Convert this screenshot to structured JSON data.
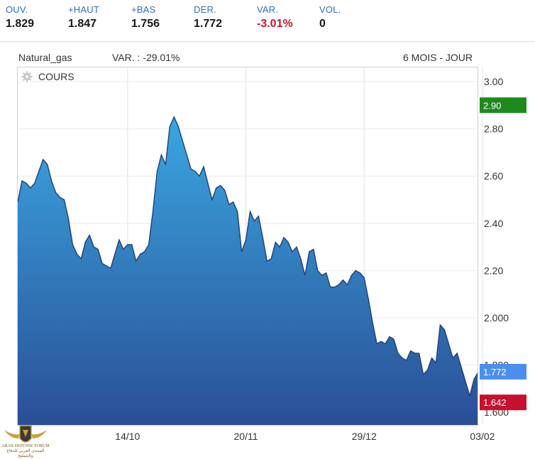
{
  "stats": [
    {
      "label": "OUV.",
      "value": "1.829",
      "neg": false
    },
    {
      "label": "+HAUT",
      "value": "1.847",
      "neg": false
    },
    {
      "label": "+BAS",
      "value": "1.756",
      "neg": false
    },
    {
      "label": "DER.",
      "value": "1.772",
      "neg": false
    },
    {
      "label": "VAR.",
      "value": "-3.01%",
      "neg": true
    },
    {
      "label": "VOL.",
      "value": "0",
      "neg": false
    }
  ],
  "header": {
    "symbol": "Natural_gas",
    "variation": "VAR. : -29.01%",
    "period": "6 MOIS - JOUR"
  },
  "chart_label": "COURS",
  "watermark": {
    "line1": "ARAB DEFENSE FORUM",
    "line2": "المنتدى العربي للدفاع والتسليح"
  },
  "colors": {
    "area_top": "#3aa6e0",
    "area_bottom": "#2a4f96",
    "line": "#1f3f7a",
    "flag_green": "#1e8a1e",
    "flag_blue": "#4a8ff0",
    "flag_red": "#c8102e",
    "label_blue": "#2f6fb8",
    "negative": "#d0142c"
  },
  "chart_data": {
    "type": "area",
    "title": "",
    "xlabel": "",
    "ylabel": "",
    "ylim": [
      1.6,
      3.0
    ],
    "y_ticks": [
      3.0,
      2.8,
      2.6,
      2.4,
      2.2,
      2.0,
      1.8,
      1.6
    ],
    "y_tick_labels": [
      "3.00",
      "2.80",
      "2.60",
      "2.40",
      "2.20",
      "2.000",
      "1.800",
      "1.600"
    ],
    "x_ticks": [
      {
        "label": "14/10",
        "index": 26
      },
      {
        "label": "20/11",
        "index": 54
      },
      {
        "label": "29/12",
        "index": 82
      },
      {
        "label": "03/02",
        "index": 110
      }
    ],
    "series": [
      {
        "values": [
          2.49,
          2.58,
          2.57,
          2.55,
          2.57,
          2.62,
          2.67,
          2.65,
          2.58,
          2.53,
          2.51,
          2.5,
          2.42,
          2.31,
          2.27,
          2.25,
          2.32,
          2.35,
          2.3,
          2.29,
          2.23,
          2.22,
          2.21,
          2.27,
          2.33,
          2.29,
          2.31,
          2.31,
          2.24,
          2.27,
          2.28,
          2.31,
          2.45,
          2.62,
          2.69,
          2.65,
          2.81,
          2.85,
          2.81,
          2.75,
          2.69,
          2.63,
          2.62,
          2.6,
          2.64,
          2.57,
          2.5,
          2.55,
          2.56,
          2.54,
          2.48,
          2.49,
          2.45,
          2.28,
          2.33,
          2.45,
          2.41,
          2.43,
          2.34,
          2.24,
          2.25,
          2.32,
          2.3,
          2.34,
          2.32,
          2.28,
          2.3,
          2.25,
          2.18,
          2.28,
          2.29,
          2.2,
          2.18,
          2.19,
          2.13,
          2.13,
          2.14,
          2.16,
          2.14,
          2.18,
          2.2,
          2.19,
          2.17,
          2.08,
          1.98,
          1.89,
          1.9,
          1.89,
          1.92,
          1.91,
          1.85,
          1.83,
          1.82,
          1.86,
          1.85,
          1.85,
          1.76,
          1.78,
          1.83,
          1.81,
          1.97,
          1.95,
          1.89,
          1.83,
          1.85,
          1.79,
          1.73,
          1.67,
          1.74,
          1.77
        ]
      }
    ],
    "markers": [
      {
        "label": "2.90",
        "value": 2.9,
        "color": "#1e8a1e"
      },
      {
        "label": "1.772",
        "value": 1.772,
        "color": "#4a8ff0"
      },
      {
        "label": "1.642",
        "value": 1.642,
        "color": "#c8102e"
      }
    ],
    "grid": true
  }
}
